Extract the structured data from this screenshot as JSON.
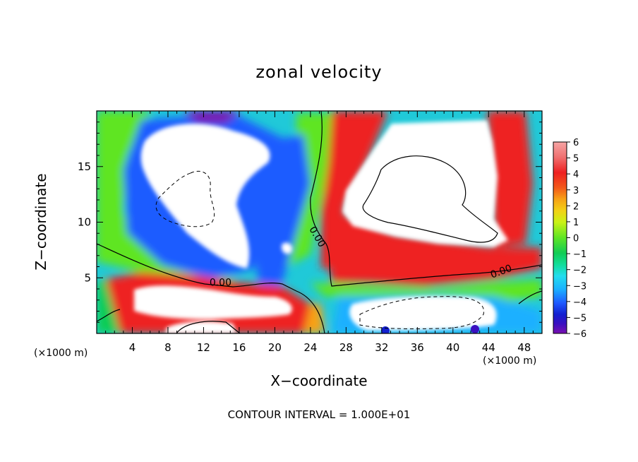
{
  "title": "zonal velocity",
  "footer": "CONTOUR INTERVAL = 1.000E+01",
  "x_unit_left": "(×1000 m)",
  "x_unit_right": "(×1000 m)",
  "chart_data": {
    "type": "heatmap",
    "title": "zonal velocity",
    "xlabel": "X−coordinate",
    "ylabel": "Z−coordinate",
    "x_unit": "(×1000 m)",
    "xlim": [
      0,
      50
    ],
    "ylim": [
      0,
      20
    ],
    "x_ticks": [
      4,
      8,
      12,
      16,
      20,
      24,
      28,
      32,
      36,
      40,
      44,
      48
    ],
    "y_ticks": [
      5,
      10,
      15
    ],
    "colorbar": {
      "ticks": [
        "6",
        "5",
        "4",
        "3",
        "2",
        "1",
        "0",
        "−1",
        "−2",
        "−3",
        "−4",
        "−5",
        "−6"
      ],
      "range": [
        -6,
        6
      ],
      "colors": [
        "#f6a5a5",
        "#f07070",
        "#ee2020",
        "#f35a1a",
        "#f7a316",
        "#f2d216",
        "#c9f216",
        "#5ee524",
        "#11cc55",
        "#11dd99",
        "#22ddee",
        "#1bb0ff",
        "#1f5bff",
        "#1320d0",
        "#3a10c0",
        "#7a10b0"
      ]
    },
    "contour_labels": [
      "0.00",
      "0.00",
      "0.00",
      "0.00"
    ],
    "contour_interval": "1.000E+01"
  }
}
